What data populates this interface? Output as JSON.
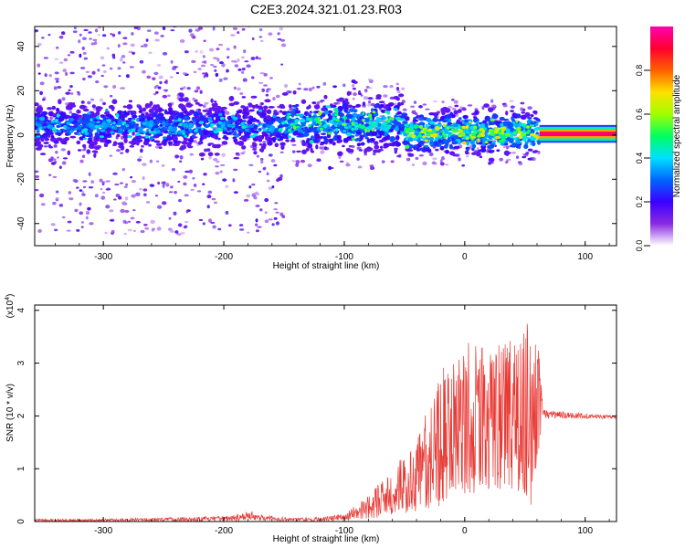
{
  "figure": {
    "title": "C2E3.2024.321.01.23.R03"
  },
  "chart_data": [
    {
      "type": "heatmap",
      "xlabel": "Height of straight line (km)",
      "ylabel": "Frequency (Hz)",
      "xlim": [
        -357,
        126
      ],
      "ylim": [
        -50,
        49
      ],
      "x_ticks": [
        -300,
        -200,
        -100,
        0,
        100
      ],
      "y_ticks": [
        -40,
        -20,
        0,
        20,
        40
      ],
      "colorbar": {
        "label": "Normalized spectral amplitude",
        "range": [
          0,
          1
        ],
        "ticks": [
          0.0,
          0.2,
          0.4,
          0.6,
          0.8
        ],
        "tick_labels": [
          "0.0",
          "0.2",
          "0.4",
          "0.6",
          "0.8"
        ],
        "colormap": [
          "#ffffff",
          "#8a2be2",
          "#3a00ff",
          "#0066ff",
          "#00e0ff",
          "#00ff60",
          "#a0ff00",
          "#ffe000",
          "#ff6000",
          "#ff0030",
          "#ff00b0"
        ]
      },
      "regions": [
        {
          "x": [
            -357,
            -150
          ],
          "center_freq": 4,
          "band_halfwidth": 9,
          "scatter_halfwidth": 49,
          "peak_amplitude": 0.35
        },
        {
          "x": [
            -150,
            -50
          ],
          "center_freq": 5,
          "band_halfwidth": 10,
          "scatter_halfwidth": 20,
          "peak_amplitude": 0.45
        },
        {
          "x": [
            -50,
            62
          ],
          "center_freq": 1,
          "band_halfwidth": 8,
          "scatter_halfwidth": 15,
          "peak_amplitude": 0.55
        },
        {
          "x": [
            62,
            126
          ],
          "center_freq": 0.5,
          "band_halfwidth": 2,
          "scatter_halfwidth": 4,
          "peak_amplitude": 0.95
        }
      ]
    },
    {
      "type": "line",
      "xlabel": "Height of straight line (km)",
      "ylabel": "SNR (10 * v/v)",
      "y_multiplier": "(x10",
      "y_multiplier_exp": "4",
      "y_multiplier_close": ")",
      "xlim": [
        -357,
        126
      ],
      "ylim": [
        0,
        4.1
      ],
      "x_ticks": [
        -300,
        -200,
        -100,
        0,
        100
      ],
      "y_ticks": [
        0,
        1,
        2,
        3,
        4
      ],
      "series": [
        {
          "color": "#e83a35",
          "envelope_x": [
            -357,
            -300,
            -250,
            -200,
            -180,
            -170,
            -150,
            -120,
            -100,
            -80,
            -60,
            -40,
            -20,
            -10,
            0,
            20,
            40,
            55,
            62,
            65,
            70,
            100,
            126
          ],
          "envelope_upper": [
            0.05,
            0.05,
            0.08,
            0.1,
            0.2,
            0.15,
            0.08,
            0.08,
            0.15,
            0.5,
            1.0,
            1.5,
            3.0,
            3.0,
            3.4,
            3.3,
            3.5,
            4.0,
            3.2,
            2.15,
            2.1,
            2.05,
            2.0
          ],
          "envelope_lower": [
            0.0,
            0.0,
            0.0,
            0.0,
            0.02,
            0.02,
            0.0,
            0.0,
            0.02,
            0.05,
            0.1,
            0.2,
            0.3,
            0.5,
            0.5,
            0.6,
            0.6,
            0.3,
            1.3,
            1.95,
            1.95,
            1.95,
            1.95
          ]
        }
      ]
    }
  ]
}
